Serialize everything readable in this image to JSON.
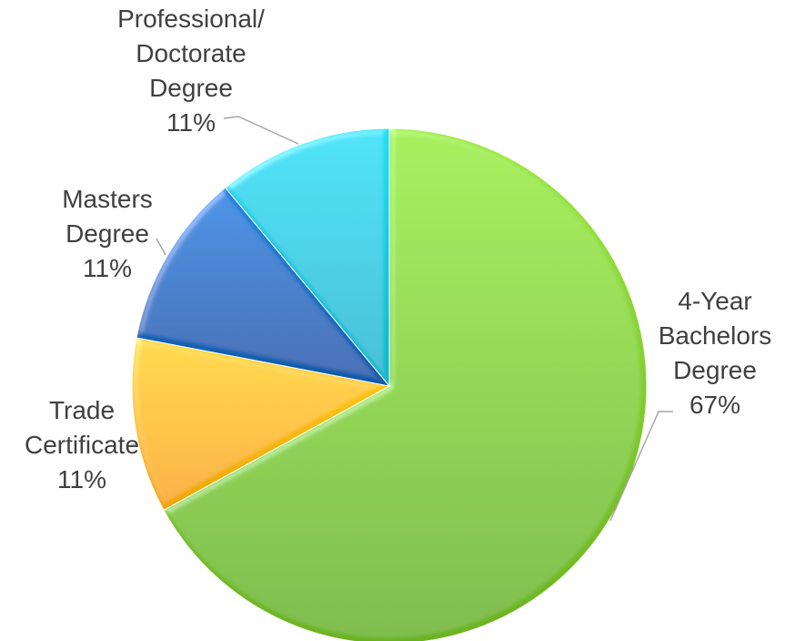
{
  "chart_data": {
    "type": "pie",
    "title": "",
    "slices": [
      {
        "name": "4-Year Bachelors Degree",
        "value": 67,
        "percent_label": "67%",
        "label_lines": [
          "4-Year",
          "Bachelors",
          "Degree"
        ],
        "color": "#8cd13a"
      },
      {
        "name": "Trade Certificate",
        "value": 11,
        "percent_label": "11%",
        "label_lines": [
          "Trade",
          "Certificate"
        ],
        "color": "#ffc000"
      },
      {
        "name": "Masters Degree",
        "value": 11,
        "percent_label": "11%",
        "label_lines": [
          "Masters",
          "Degree"
        ],
        "color": "#0f6fc6"
      },
      {
        "name": "Professional/ Doctorate Degree",
        "value": 11,
        "percent_label": "11%",
        "label_lines": [
          "Professional/",
          "Doctorate",
          "Degree"
        ],
        "color": "#10cfe3"
      }
    ],
    "legend": "none",
    "label_position": "outside-end"
  }
}
